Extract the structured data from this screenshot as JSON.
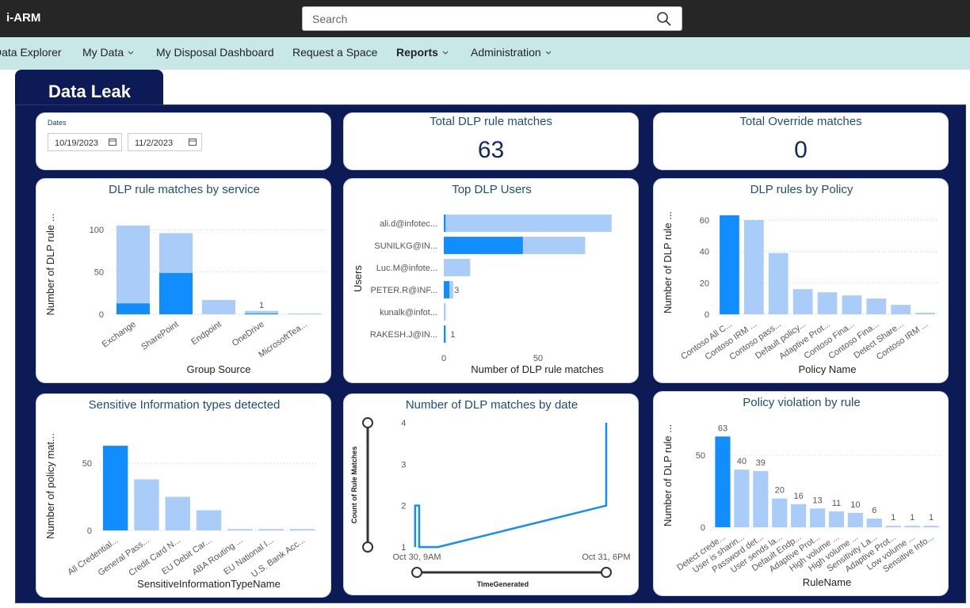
{
  "header": {
    "brand": "i-ARM",
    "search_placeholder": "Search"
  },
  "nav": [
    "Data Explorer",
    "My Data",
    "My Disposal Dashboard",
    "Request a Space",
    "Reports",
    "Administration"
  ],
  "tab": "Data Leak",
  "dates": {
    "label": "Dates",
    "start": "10/19/2023",
    "end": "11/2/2023"
  },
  "kpis": [
    {
      "title": "Total DLP rule matches",
      "value": 63
    },
    {
      "title": "Total Override matches",
      "value": 0
    }
  ],
  "charts": [
    {
      "type": "stacked-bar",
      "title": "DLP rule matches by service",
      "ylabel": "Number of DLP rule ...",
      "xlabel": "Group Source",
      "categories": [
        "Exchange",
        "SharePoint",
        "Endpoint",
        "OneDrive",
        "MicrosoftTea..."
      ],
      "series": [
        {
          "color": "#118dff",
          "values": [
            13,
            49,
            null,
            1,
            null
          ],
          "data_labels": true
        },
        {
          "color": "#a9cdf8",
          "values": [
            92,
            47,
            17,
            3,
            1
          ]
        }
      ],
      "ylim": [
        0,
        118
      ],
      "yticks": [
        0,
        50,
        100
      ],
      "grid": true
    },
    {
      "type": "stacked-hbar",
      "title": "Top DLP Users",
      "ylabel": "Users",
      "xlabel": "Number of DLP rule matches",
      "categories": [
        "ali.d@infotec...",
        "SUNILKG@IN...",
        "Luc.M@infote...",
        "PETER.R@INF...",
        "kunalk@infot...",
        "RAKESH.J@IN..."
      ],
      "series": [
        {
          "color": "#118dff",
          "values": [
            1,
            42,
            null,
            3,
            null,
            1
          ],
          "data_labels": true
        },
        {
          "color": "#a9cdf8",
          "values": [
            88,
            33,
            14,
            2,
            1,
            null
          ]
        }
      ],
      "xlim": [
        0,
        95
      ],
      "xticks": [
        0,
        50
      ],
      "grid": false
    },
    {
      "type": "bar",
      "title": "DLP rules by Policy",
      "ylabel": "Number of DLP rule ...",
      "xlabel": "Policy Name",
      "categories": [
        "Contoso All C...",
        "Contoso IRM ...",
        "Contoso pass...",
        "Default policy...",
        "Adaptive Prot...",
        "Contoso Fina...",
        "Contoso Fina...",
        "Detect Share...",
        "Contoso IRM ..."
      ],
      "values": [
        63,
        60,
        39,
        16,
        14,
        12,
        10,
        6,
        1
      ],
      "colors": [
        "#118dff",
        "#a9cdf8",
        "#a9cdf8",
        "#a9cdf8",
        "#a9cdf8",
        "#a9cdf8",
        "#a9cdf8",
        "#a9cdf8",
        "#a9cdf8"
      ],
      "ylim": [
        0,
        66
      ],
      "yticks": [
        0,
        20,
        40,
        60
      ],
      "grid": true
    },
    {
      "type": "bar",
      "title": "Sensitive Information types detected",
      "ylabel": "Number of policy mat...",
      "xlabel": "SensitiveInformationTypeName",
      "categories": [
        "All Credential...",
        "General Pass...",
        "Credit Card N...",
        "EU Debit Car...",
        "ABA Routing ...",
        "EU National I...",
        "U.S. Bank Acc..."
      ],
      "values": [
        63,
        38,
        25,
        15,
        1,
        1,
        1
      ],
      "colors": [
        "#118dff",
        "#a9cdf8",
        "#a9cdf8",
        "#a9cdf8",
        "#a9cdf8",
        "#a9cdf8",
        "#a9cdf8"
      ],
      "ylim": [
        0,
        66
      ],
      "yticks": [
        0,
        50
      ],
      "grid": true
    },
    {
      "type": "line",
      "title": "Number of DLP matches by date",
      "ylabel": "Count of Rule Matches",
      "xlabel": "TimeGenerated",
      "series": [
        {
          "color": "#118dff",
          "x": [
            -0.3,
            -0.3,
            0.4,
            0.4,
            3.7,
            33,
            33
          ],
          "values": [
            1,
            2,
            2,
            1,
            1,
            2,
            4
          ]
        }
      ],
      "xlim": [
        -0.5,
        33.2
      ],
      "xticks": [
        {
          "value": 0,
          "label": "Oct 30, 9AM"
        },
        {
          "value": 33,
          "label": "Oct 31, 6PM"
        }
      ],
      "ylim": [
        1,
        4
      ],
      "yticks": [
        1,
        2,
        3,
        4
      ],
      "grid": false
    },
    {
      "type": "bar",
      "title": "Policy violation by rule",
      "ylabel": "Number of DLP rule ...",
      "xlabel": "RuleName",
      "categories": [
        "Detect crede...",
        "User is sharin...",
        "Password det...",
        "User sends la...",
        "Default Endp...",
        "Adaptive Prot...",
        "High volume ...",
        "High volume ...",
        "Sensitivity La...",
        "Adaptive Prot...",
        "Low volume ...",
        "Sensitive Info..."
      ],
      "values": [
        63,
        40,
        39,
        20,
        16,
        13,
        11,
        10,
        6,
        1,
        1,
        1
      ],
      "colors": [
        "#118dff",
        "#a9cdf8",
        "#a9cdf8",
        "#a9cdf8",
        "#a9cdf8",
        "#a9cdf8",
        "#a9cdf8",
        "#a9cdf8",
        "#a9cdf8",
        "#a9cdf8",
        "#a9cdf8",
        "#a9cdf8"
      ],
      "data_labels": true,
      "ylim": [
        0,
        72
      ],
      "yticks": [
        0,
        50
      ],
      "grid": true
    }
  ]
}
